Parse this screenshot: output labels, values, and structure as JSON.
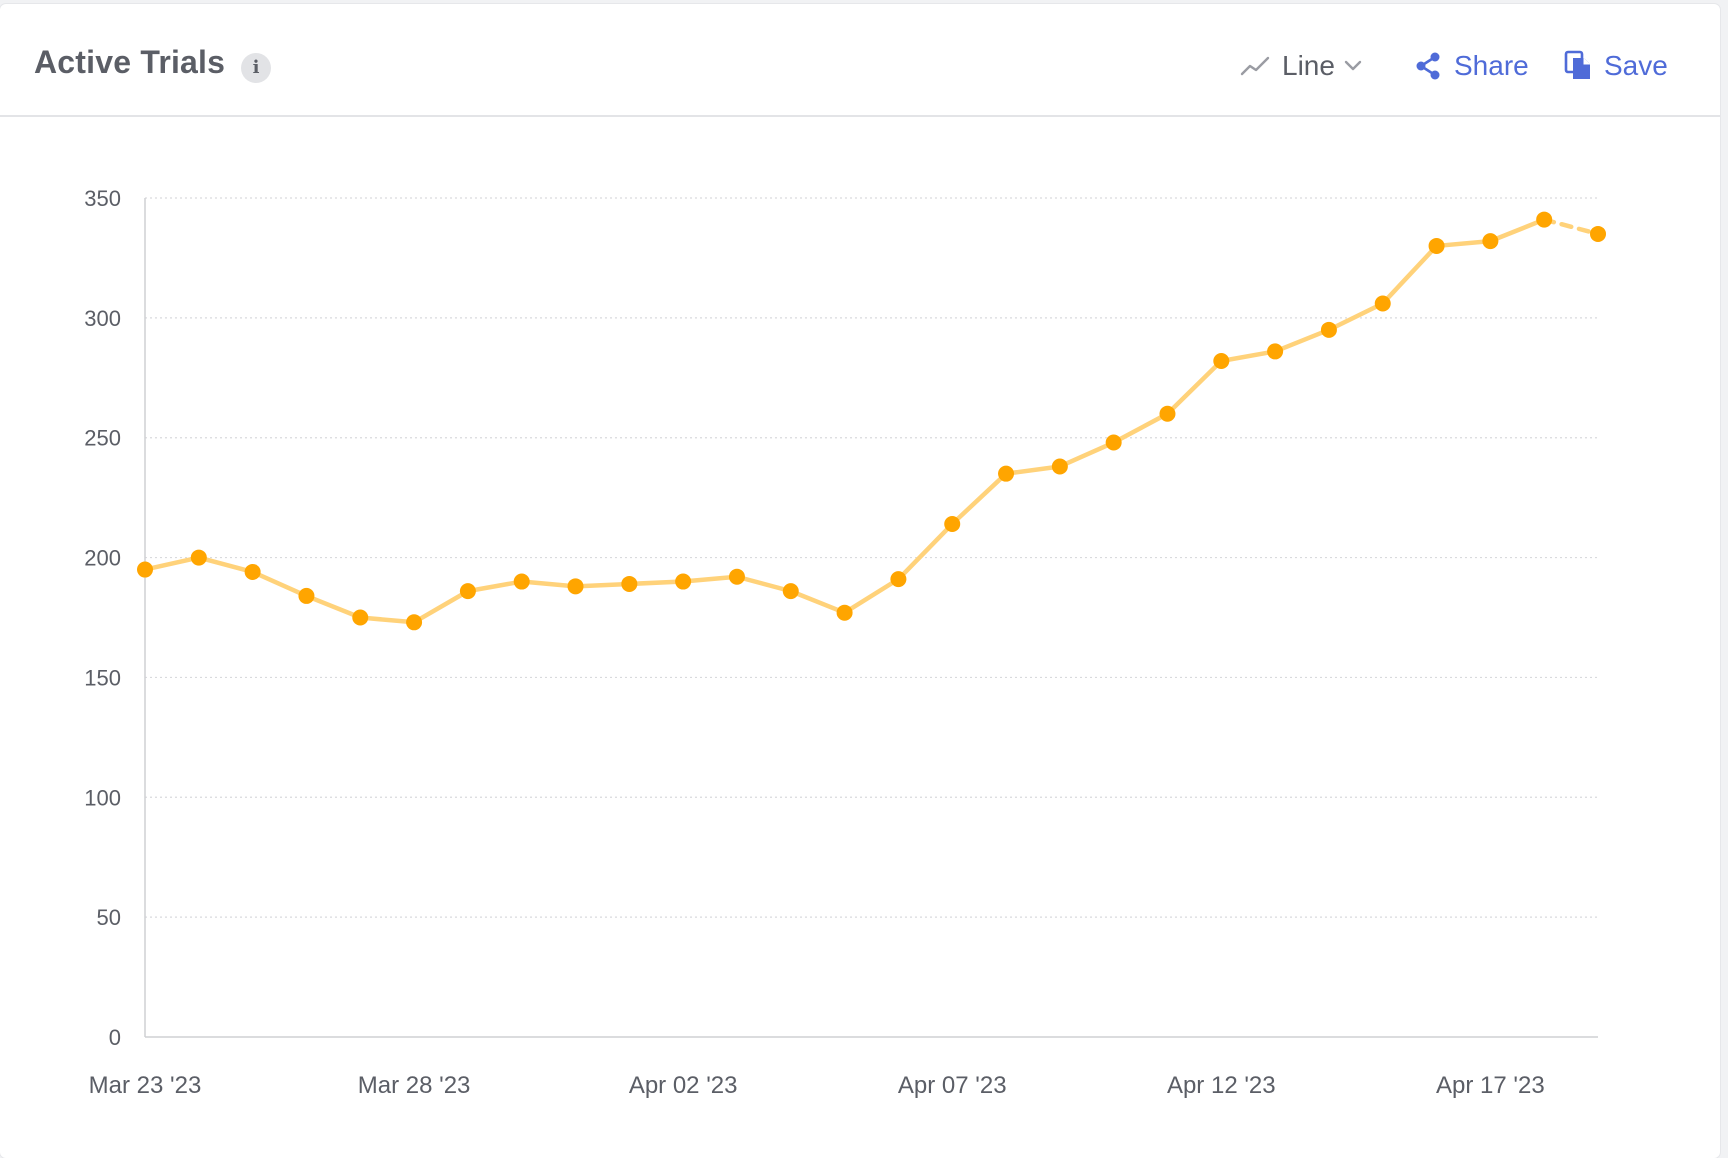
{
  "header": {
    "title": "Active Trials",
    "info_icon": "info-icon",
    "chart_type_label": "Line",
    "chart_type_icon": "line-chart-icon",
    "share_label": "Share",
    "share_icon": "share-icon",
    "save_label": "Save",
    "save_icon": "copy-save-icon",
    "accent_color": "#4f6bd8"
  },
  "chart_data": {
    "type": "line",
    "x": [
      "2023-03-23",
      "2023-03-24",
      "2023-03-25",
      "2023-03-26",
      "2023-03-27",
      "2023-03-28",
      "2023-03-29",
      "2023-03-30",
      "2023-03-31",
      "2023-04-01",
      "2023-04-02",
      "2023-04-03",
      "2023-04-04",
      "2023-04-05",
      "2023-04-06",
      "2023-04-07",
      "2023-04-08",
      "2023-04-09",
      "2023-04-10",
      "2023-04-11",
      "2023-04-12",
      "2023-04-13",
      "2023-04-14",
      "2023-04-15",
      "2023-04-16",
      "2023-04-17",
      "2023-04-18",
      "2023-04-19"
    ],
    "series": [
      {
        "values": [
          195,
          200,
          194,
          184,
          175,
          173,
          186,
          190,
          188,
          189,
          190,
          192,
          186,
          177,
          191,
          214,
          235,
          238,
          248,
          260,
          282,
          286,
          295,
          306,
          330,
          332,
          341,
          335
        ],
        "color": "#ffa500",
        "line_color": "#ffd27a",
        "last_segment_dashed": true
      }
    ],
    "ylim": [
      0,
      350
    ],
    "yticks": [
      0,
      50,
      100,
      150,
      200,
      250,
      300,
      350
    ],
    "xtick_labels": [
      "Mar 23 '23",
      "Mar 28 '23",
      "Apr 02 '23",
      "Apr 07 '23",
      "Apr 12 '23",
      "Apr 17 '23"
    ],
    "xtick_indices": [
      0,
      5,
      10,
      15,
      20,
      25
    ],
    "grid": true,
    "legend": false
  }
}
